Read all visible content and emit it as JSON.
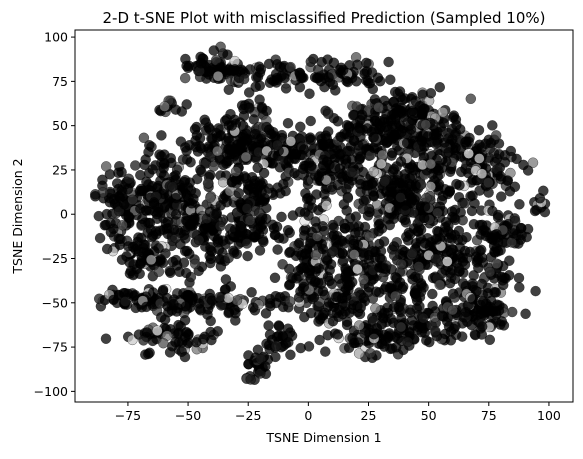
{
  "chart_data": {
    "type": "scatter",
    "title": "2-D t-SNE Plot with misclassified Prediction (Sampled 10%)",
    "xlabel": "TSNE Dimension 1",
    "ylabel": "TSNE Dimension 2",
    "xlim": [
      -97,
      110
    ],
    "ylim": [
      -106,
      104
    ],
    "xticks": [
      "−75",
      "−50",
      "−25",
      "0",
      "25",
      "50",
      "75",
      "100"
    ],
    "xtick_values": [
      -75,
      -50,
      -25,
      0,
      25,
      50,
      75,
      100
    ],
    "yticks": [
      "−100",
      "−75",
      "−50",
      "−25",
      "0",
      "25",
      "50",
      "75",
      "100"
    ],
    "ytick_values": [
      -100,
      -75,
      -50,
      -25,
      0,
      25,
      50,
      75,
      100
    ],
    "grid": false,
    "marker_colors": [
      "#000000",
      "#1a1a1a",
      "#333333",
      "#4d4d4d",
      "#7a7a7a",
      "#a6a6a6",
      "#cccccc",
      "#e6e6e6"
    ],
    "series": [
      {
        "clusters": [
          {
            "cx": -39,
            "cy": 82,
            "sx": 7,
            "sy": 4,
            "n": 60
          },
          {
            "cx": -15,
            "cy": 78,
            "sx": 10,
            "sy": 5,
            "n": 60
          },
          {
            "cx": 15,
            "cy": 80,
            "sx": 9,
            "sy": 5,
            "n": 50
          },
          {
            "cx": -58,
            "cy": 60,
            "sx": 3,
            "sy": 2,
            "n": 12
          },
          {
            "cx": -25,
            "cy": 60,
            "sx": 4,
            "sy": 2,
            "n": 12
          },
          {
            "cx": -32,
            "cy": 40,
            "sx": 9,
            "sy": 8,
            "n": 130
          },
          {
            "cx": -10,
            "cy": 37,
            "sx": 8,
            "sy": 7,
            "n": 90
          },
          {
            "cx": 8,
            "cy": 25,
            "sx": 8,
            "sy": 8,
            "n": 100
          },
          {
            "cx": 25,
            "cy": 45,
            "sx": 10,
            "sy": 10,
            "n": 140
          },
          {
            "cx": 42,
            "cy": 55,
            "sx": 8,
            "sy": 8,
            "n": 110
          },
          {
            "cx": 55,
            "cy": 40,
            "sx": 9,
            "sy": 10,
            "n": 110
          },
          {
            "cx": 75,
            "cy": 25,
            "sx": 7,
            "sy": 8,
            "n": 80
          },
          {
            "cx": 45,
            "cy": 15,
            "sx": 9,
            "sy": 8,
            "n": 90
          },
          {
            "cx": 30,
            "cy": 10,
            "sx": 7,
            "sy": 9,
            "n": 70
          },
          {
            "cx": -75,
            "cy": 5,
            "sx": 7,
            "sy": 10,
            "n": 120
          },
          {
            "cx": -58,
            "cy": 10,
            "sx": 7,
            "sy": 14,
            "n": 130
          },
          {
            "cx": -42,
            "cy": -5,
            "sx": 9,
            "sy": 14,
            "n": 150
          },
          {
            "cx": -22,
            "cy": 10,
            "sx": 6,
            "sy": 9,
            "n": 70
          },
          {
            "cx": -25,
            "cy": -10,
            "sx": 5,
            "sy": 7,
            "n": 50
          },
          {
            "cx": -68,
            "cy": -25,
            "sx": 6,
            "sy": 6,
            "n": 60
          },
          {
            "cx": 0,
            "cy": -20,
            "sx": 6,
            "sy": 14,
            "n": 120
          },
          {
            "cx": 20,
            "cy": -25,
            "sx": 6,
            "sy": 12,
            "n": 90
          },
          {
            "cx": 35,
            "cy": -35,
            "sx": 9,
            "sy": 11,
            "n": 100
          },
          {
            "cx": 50,
            "cy": 0,
            "sx": 8,
            "sy": 6,
            "n": 70
          },
          {
            "cx": 55,
            "cy": -25,
            "sx": 8,
            "sy": 9,
            "n": 90
          },
          {
            "cx": 72,
            "cy": -35,
            "sx": 8,
            "sy": 15,
            "n": 110
          },
          {
            "cx": 80,
            "cy": -10,
            "sx": 5,
            "sy": 7,
            "n": 50
          },
          {
            "cx": -65,
            "cy": -48,
            "sx": 12,
            "sy": 3,
            "n": 70
          },
          {
            "cx": -35,
            "cy": -50,
            "sx": 14,
            "sy": 4,
            "n": 80
          },
          {
            "cx": -55,
            "cy": -70,
            "sx": 10,
            "sy": 5,
            "n": 60
          },
          {
            "cx": 10,
            "cy": -50,
            "sx": 10,
            "sy": 7,
            "n": 80
          },
          {
            "cx": 25,
            "cy": -70,
            "sx": 9,
            "sy": 5,
            "n": 70
          },
          {
            "cx": 45,
            "cy": -60,
            "sx": 9,
            "sy": 7,
            "n": 70
          },
          {
            "cx": 70,
            "cy": -55,
            "sx": 8,
            "sy": 6,
            "n": 60
          },
          {
            "cx": -20,
            "cy": -85,
            "sx": 3,
            "sy": 5,
            "n": 30
          },
          {
            "cx": -10,
            "cy": -70,
            "sx": 4,
            "sy": 5,
            "n": 25
          },
          {
            "cx": 97,
            "cy": 5,
            "sx": 2,
            "sy": 3,
            "n": 10
          }
        ]
      }
    ]
  }
}
